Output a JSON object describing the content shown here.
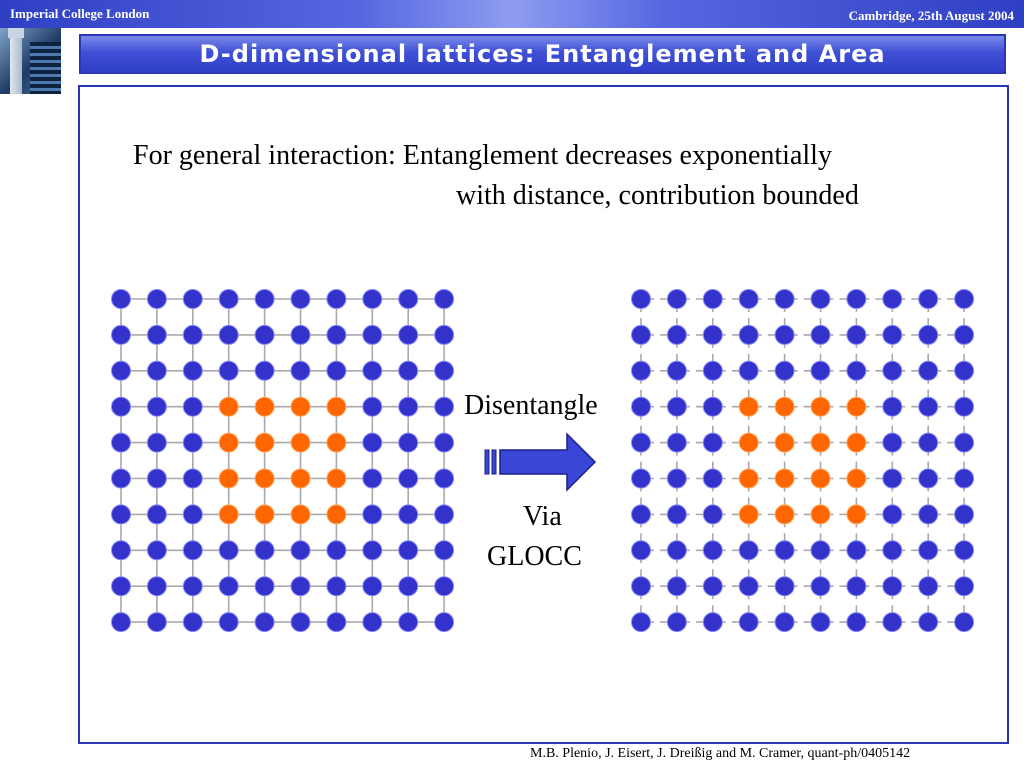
{
  "header": {
    "institution": "Imperial College London",
    "event": "Cambridge, 25th August 2004"
  },
  "slide": {
    "title": "D-dimensional lattices: Entanglement and Area",
    "statement_line1": "For general interaction: Entanglement decreases exponentially",
    "statement_line2": "with distance, contribution bounded",
    "operation_label": "Disentangle",
    "via_label": "Via",
    "method_label": "GLOCC",
    "citation": "M.B. Plenio, J. Eisert, J. Dreißig and M. Cramer, quant-ph/0405142"
  },
  "lattices": {
    "rows": 10,
    "cols": 10,
    "highlighted_rows": [
      3,
      4,
      5,
      6
    ],
    "highlighted_cols": [
      3,
      4,
      5,
      6
    ],
    "site_color": "#3333cc",
    "site_edge_color": "#8888ff",
    "highlight_color": "#ff6600",
    "highlight_edge_color": "#ffaa66",
    "bond_color": "#a9a9a9",
    "before_bonds": "solid",
    "after_bonds": "dashed"
  },
  "colors": {
    "title_bar": "#3f50d6",
    "frame_border": "#2c36b4",
    "arrow_fill": "#3a46d6"
  }
}
